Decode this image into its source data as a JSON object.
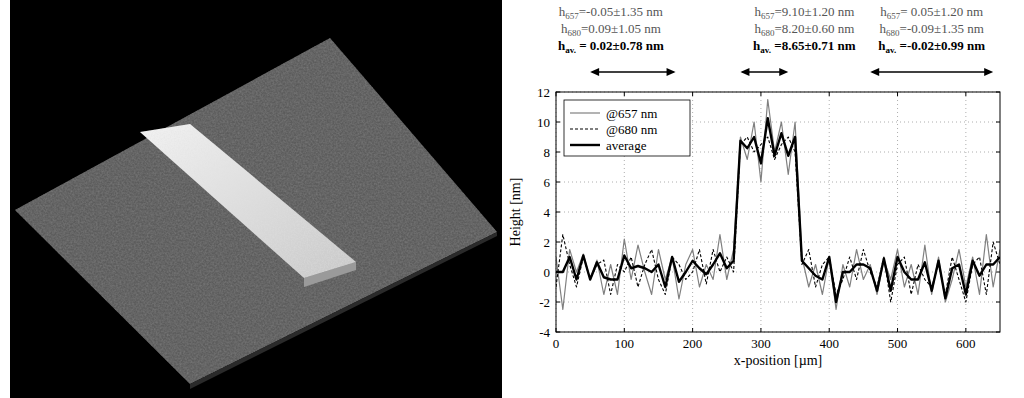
{
  "chart_data": {
    "type": "line",
    "x_label": "x-position [µm]",
    "y_label": "Height [nm]",
    "xlim": [
      0,
      650
    ],
    "xticks": [
      0,
      100,
      200,
      300,
      400,
      500,
      600
    ],
    "ylim": [
      -4,
      12
    ],
    "yticks": [
      -4,
      -2,
      0,
      2,
      4,
      6,
      8,
      10,
      12
    ],
    "grid": true,
    "legend": "upper left",
    "x": [
      0,
      10,
      20,
      30,
      40,
      50,
      60,
      70,
      80,
      90,
      100,
      110,
      120,
      130,
      140,
      150,
      160,
      170,
      180,
      190,
      200,
      210,
      220,
      230,
      240,
      250,
      260,
      270,
      280,
      290,
      300,
      310,
      320,
      330,
      340,
      350,
      360,
      370,
      380,
      390,
      400,
      410,
      420,
      430,
      440,
      450,
      460,
      470,
      480,
      490,
      500,
      510,
      520,
      530,
      540,
      550,
      560,
      570,
      580,
      590,
      600,
      610,
      620,
      630,
      640,
      650
    ],
    "series": [
      {
        "name": "@657 nm",
        "color": "#808080",
        "line_style": "solid",
        "values": [
          1,
          -2.5,
          1.5,
          0,
          1.2,
          -0.5,
          0.8,
          -1.5,
          0.5,
          -1.5,
          2.2,
          -0.5,
          1.8,
          0,
          -1.5,
          1.5,
          -0.5,
          1,
          -1.8,
          0.5,
          1.5,
          -1,
          0.5,
          -0.5,
          2.5,
          -0.5,
          1.5,
          9,
          7.5,
          10,
          6,
          11.5,
          8,
          10,
          6.5,
          10,
          1,
          -1,
          0.5,
          -1.5,
          1,
          -2.5,
          0.5,
          -1,
          1.5,
          -0.5,
          0.5,
          -1.5,
          0.8,
          -0.5,
          1.5,
          -1,
          0.5,
          -1.5,
          1.8,
          -1.5,
          1,
          -2,
          -0.5,
          1.5,
          -1,
          1,
          -1.5,
          2.5,
          -1,
          1.5
        ]
      },
      {
        "name": "@680 nm",
        "color": "#000000",
        "line_style": "dashed",
        "values": [
          -1,
          2.5,
          0.5,
          -1,
          1,
          -0.5,
          0.5,
          0.8,
          -1.5,
          0.5,
          0,
          1,
          -1,
          0.5,
          1.5,
          -0.5,
          -1.5,
          1,
          0.5,
          -0.5,
          0,
          1.5,
          -0.8,
          1.5,
          0,
          1,
          0,
          8.5,
          9,
          8,
          8.5,
          9,
          7.5,
          8.5,
          9,
          8,
          0.5,
          1.5,
          -1,
          0.5,
          1,
          -1.5,
          -0.5,
          1,
          -0.5,
          1.5,
          0,
          -1,
          1,
          -2,
          0.5,
          1,
          -1.5,
          0.5,
          -0.5,
          -1,
          0.5,
          -1.5,
          1,
          -0.5,
          -2,
          0.5,
          1,
          -1.5,
          2,
          0.5
        ]
      },
      {
        "name": "average",
        "color": "#000000",
        "line_style": "bold",
        "values": [
          0,
          0,
          1,
          -0.5,
          1.1,
          -0.5,
          0.65,
          -0.35,
          -0.5,
          -0.5,
          1.1,
          0.25,
          0.4,
          0.25,
          0,
          0.5,
          -1,
          1,
          -0.65,
          0,
          0.75,
          0.25,
          -0.15,
          0.5,
          1.25,
          0.25,
          0.75,
          8.75,
          8.25,
          9,
          7.25,
          10.25,
          7.75,
          9.25,
          7.75,
          9,
          0.75,
          0.25,
          -0.25,
          -0.5,
          1,
          -2,
          0,
          0,
          0.5,
          0.5,
          0.25,
          -1.25,
          0.9,
          -1.25,
          1,
          0,
          -0.5,
          -0.5,
          0.65,
          -1.25,
          0.75,
          -1.75,
          0.25,
          0.5,
          -1.5,
          0.75,
          -0.25,
          0.5,
          0.5,
          1
        ]
      }
    ],
    "annotations": [
      {
        "x_range": [
          50,
          175
        ],
        "lines": [
          {
            "label": "h",
            "subscript": "657",
            "value": "=-0.05±1.35 nm"
          },
          {
            "label": "h",
            "subscript": "680",
            "value": "=0.09±1.05 nm"
          },
          {
            "label": "h",
            "subscript": "av.",
            "value": " = 0.02±0.78 nm"
          }
        ]
      },
      {
        "x_range": [
          270,
          340
        ],
        "lines": [
          {
            "label": "h",
            "subscript": "657",
            "value": "=9.10±1.20 nm"
          },
          {
            "label": "h",
            "subscript": "680",
            "value": "=8.20±0.60 nm"
          },
          {
            "label": "h",
            "subscript": "av.",
            "value": " =8.65±0.71 nm"
          }
        ]
      },
      {
        "x_range": [
          460,
          640
        ],
        "lines": [
          {
            "label": "h",
            "subscript": "657",
            "value": "= 0.05±1.20 nm"
          },
          {
            "label": "h",
            "subscript": "680",
            "value": "=-0.09±1.35 nm"
          },
          {
            "label": "h",
            "subscript": "av.",
            "value": " =-0.02±0.99 nm"
          }
        ]
      }
    ]
  }
}
